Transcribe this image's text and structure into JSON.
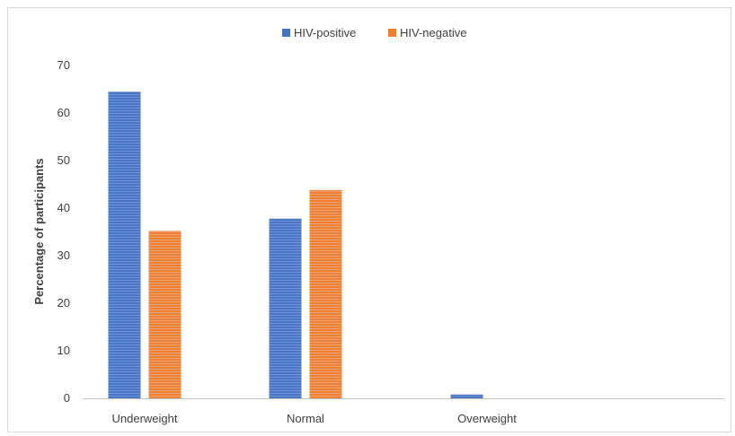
{
  "chart_data": {
    "type": "bar",
    "categories": [
      "Underweight",
      "Normal",
      "Overweight"
    ],
    "series": [
      {
        "name": "HIV-positive",
        "values": [
          64.5,
          37.8,
          0.8
        ],
        "color": "#4472C4"
      },
      {
        "name": "HIV-negative",
        "values": [
          35.2,
          43.8,
          0
        ],
        "color": "#ED7D31"
      }
    ],
    "title": "",
    "xlabel": "",
    "ylabel": "Percentage of participants",
    "ylim": [
      0,
      70
    ],
    "yticks": [
      0,
      10,
      20,
      30,
      40,
      50,
      60,
      70
    ],
    "grid": false,
    "legend": "top-center"
  }
}
